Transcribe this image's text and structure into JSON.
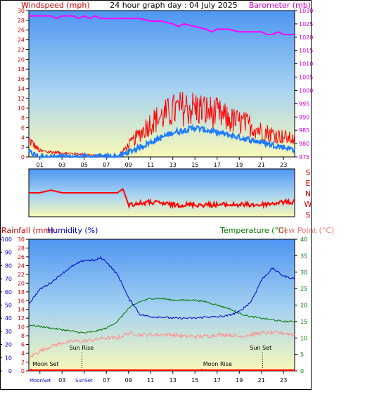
{
  "header": {
    "left_label": "Windspeed (mph)",
    "center_title": "24 hour graph day : 04 July 2025",
    "right_label": "Barometer (mb)"
  },
  "colors": {
    "wind_label": "#ff0000",
    "barometer": "#ff00ff",
    "wind_gust": "#ff0000",
    "wind_avg": "#1e7bff",
    "wind_dir": "#ff0000",
    "humidity": "#0000cc",
    "temperature": "#007700",
    "dew_point": "#ff8a8a",
    "rain": "#ff0000",
    "axis_left_top": "#cc0000",
    "axis_blue": "#0000cc",
    "bg_top": "#4e95f2",
    "bg_bottom": "#f8f8b8"
  },
  "bottom_header": {
    "rainfall_label": "Rainfall (mm)",
    "humidity_label": "Humidity (%)",
    "temperature_label": "Temperature (°C)",
    "dewpoint_label": "Dew Point (°C)"
  },
  "annotations": {
    "sun_rise_1": "Sun Rise",
    "sun_set_1": "Sun Set",
    "moon_set_1": "Moon Set",
    "moon_rise_1": "Moon Rise",
    "bottom_moon_labels": "MoonSet",
    "bottom_sun_labels": "SunSet"
  },
  "chart_data": [
    {
      "type": "line",
      "id": "wind_baro",
      "x_ticks": [
        "01",
        "03",
        "05",
        "07",
        "09",
        "11",
        "13",
        "15",
        "17",
        "19",
        "21",
        "23"
      ],
      "x_range": [
        0,
        24
      ],
      "left_axis": {
        "label": "Windspeed (mph)",
        "range": [
          0,
          30
        ],
        "ticks": [
          0,
          2,
          4,
          6,
          8,
          10,
          12,
          14,
          16,
          18,
          20,
          22,
          24,
          26,
          28,
          30
        ]
      },
      "right_axis": {
        "label": "Barometer (mb)",
        "range": [
          975,
          1030
        ],
        "ticks": [
          975,
          980,
          985,
          990,
          995,
          1000,
          1005,
          1010,
          1015,
          1020,
          1025,
          1030
        ]
      },
      "series": [
        {
          "name": "Barometer (mb)",
          "axis": "right",
          "x": [
            0,
            1,
            2,
            2.5,
            3,
            4,
            4.5,
            5,
            5.5,
            6,
            6.5,
            7,
            8,
            9,
            10,
            11,
            12,
            13,
            13.5,
            14,
            15,
            16,
            16.5,
            17,
            18,
            19,
            20,
            21,
            21.5,
            22,
            22.5,
            23,
            24
          ],
          "y": [
            1028,
            1028,
            1028,
            1027,
            1028,
            1028,
            1027,
            1028,
            1027,
            1028,
            1027,
            1027,
            1027,
            1027,
            1027,
            1026,
            1026,
            1025,
            1024,
            1025,
            1024,
            1023,
            1022,
            1023,
            1023,
            1022,
            1022,
            1022,
            1021,
            1021,
            1022,
            1021,
            1021
          ]
        }
      ],
      "wind_gust_level": {
        "x": [
          0,
          1,
          8,
          9,
          10,
          11,
          12,
          13,
          14,
          15,
          16,
          17,
          18,
          19,
          20,
          21,
          22,
          23,
          24
        ],
        "y": [
          3,
          1,
          0,
          2,
          4,
          6,
          7,
          8,
          8.5,
          8.5,
          8,
          7.5,
          6.5,
          6,
          5.5,
          4.5,
          4,
          3.5,
          3
        ]
      },
      "wind_avg_level": {
        "x": [
          0,
          1,
          8,
          9,
          10,
          11,
          12,
          13,
          14,
          15,
          16,
          17,
          18,
          19,
          20,
          21,
          22,
          23,
          24
        ],
        "y": [
          1,
          0,
          0,
          1,
          2,
          3,
          4,
          5,
          5.5,
          6,
          5.5,
          5,
          4.5,
          4,
          3.5,
          3,
          2.5,
          2,
          1.5
        ]
      }
    },
    {
      "type": "line",
      "id": "wind_direction",
      "y_ticks": [
        "S",
        "E",
        "N",
        "W",
        "S"
      ],
      "x_range": [
        0,
        24
      ],
      "series": [
        {
          "name": "Wind direction",
          "x": [
            0,
            1,
            2,
            3,
            5,
            7,
            8,
            8.5,
            9,
            10,
            11,
            12,
            13,
            15,
            17,
            19,
            21,
            22,
            23,
            24
          ],
          "y": [
            180,
            180,
            160,
            180,
            180,
            180,
            180,
            150,
            270,
            260,
            250,
            260,
            270,
            270,
            270,
            270,
            270,
            260,
            250,
            250
          ]
        }
      ]
    },
    {
      "type": "line",
      "id": "temp_humidity",
      "x_ticks": [
        "01",
        "03",
        "05",
        "07",
        "09",
        "11",
        "13",
        "15",
        "17",
        "19",
        "21",
        "23"
      ],
      "x_range": [
        0,
        24
      ],
      "humidity_axis": {
        "label": "Humidity (%)",
        "range": [
          0,
          100
        ],
        "ticks": [
          0,
          10,
          20,
          30,
          40,
          50,
          60,
          70,
          80,
          90,
          100
        ]
      },
      "rain_axis": {
        "label": "Rainfall (mm)",
        "range": [
          0,
          30
        ],
        "ticks": [
          0,
          2,
          4,
          6,
          8,
          10,
          12,
          14,
          16,
          18,
          20,
          22,
          24,
          26,
          28,
          30
        ]
      },
      "temp_axis": {
        "label": "Temperature (°C)",
        "range": [
          0,
          40
        ],
        "ticks": [
          0,
          5,
          10,
          15,
          20,
          25,
          30,
          35,
          40
        ]
      },
      "series": [
        {
          "name": "Humidity (%)",
          "axis": "humidity",
          "x": [
            0,
            1,
            2,
            3,
            4,
            5,
            6,
            6.5,
            7,
            8,
            8.5,
            9,
            9.5,
            10,
            11,
            12,
            13,
            14,
            15,
            16,
            17,
            18,
            19,
            20,
            20.5,
            21,
            22,
            23,
            24
          ],
          "y": [
            51,
            62,
            67,
            74,
            80,
            84,
            84,
            86,
            83,
            73,
            65,
            55,
            50,
            43,
            41,
            41,
            40,
            40,
            40,
            41,
            41,
            42,
            45,
            52,
            60,
            69,
            78,
            72,
            70
          ]
        },
        {
          "name": "Temperature (°C)",
          "axis": "temp",
          "x": [
            0,
            1,
            2,
            3,
            4,
            5,
            6,
            7,
            8,
            9,
            10,
            11,
            12,
            13,
            14,
            15,
            16,
            17,
            18,
            19,
            20,
            21,
            22,
            23,
            24
          ],
          "y": [
            14,
            13.5,
            13,
            12.5,
            12,
            11.5,
            12,
            13,
            15,
            19,
            21,
            22,
            22,
            21.5,
            21.5,
            21.5,
            21,
            20,
            19,
            17.5,
            16.5,
            16,
            15.5,
            15,
            15
          ]
        },
        {
          "name": "Dew Point (°C)",
          "axis": "temp",
          "x": [
            0,
            1,
            2,
            3,
            4,
            5,
            6,
            7,
            8,
            9,
            10,
            11,
            12,
            13,
            14,
            15,
            16,
            17,
            18,
            19,
            20,
            21,
            22,
            23,
            24
          ],
          "y": [
            4,
            6,
            7.5,
            8.5,
            9,
            9,
            9.5,
            10,
            10,
            11.5,
            11,
            11,
            11,
            11,
            10.5,
            10.5,
            10.5,
            11,
            11,
            10.5,
            11,
            11.5,
            11.5,
            11.5,
            11
          ]
        }
      ],
      "events": [
        {
          "label": "Moon Set",
          "x": 0.2
        },
        {
          "label": "Sun Rise",
          "x": 4.8
        },
        {
          "label": "Moon Rise",
          "x": 15.6
        },
        {
          "label": "Sun Set",
          "x": 21.1
        }
      ]
    }
  ]
}
